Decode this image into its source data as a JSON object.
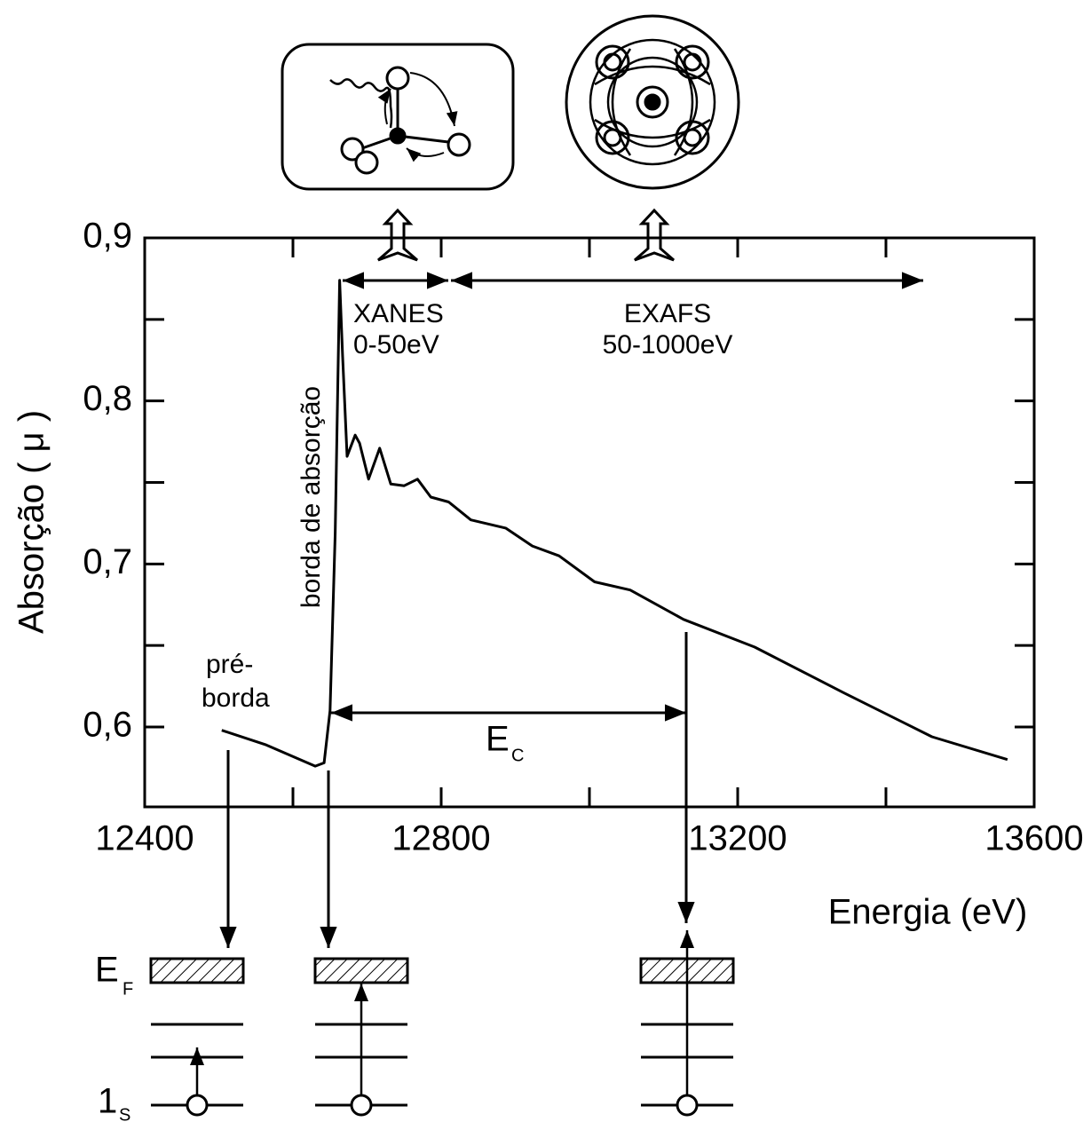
{
  "chart_data": {
    "type": "line",
    "xlabel": "Energia (eV)",
    "ylabel": "Absorção ( μ )",
    "x": [
      12504,
      12564,
      12630,
      12642,
      12650,
      12657,
      12663,
      12667,
      12673,
      12684,
      12690,
      12702,
      12717,
      12732,
      12750,
      12768,
      12786,
      12810,
      12840,
      12887,
      12923,
      12959,
      13007,
      13055,
      13127,
      13223,
      13343,
      13462,
      13564
    ],
    "series": [
      {
        "color": "#000000",
        "values": [
          0.598,
          0.589,
          0.576,
          0.578,
          0.61,
          0.719,
          0.874,
          0.828,
          0.766,
          0.779,
          0.774,
          0.752,
          0.771,
          0.749,
          0.748,
          0.752,
          0.741,
          0.738,
          0.727,
          0.722,
          0.711,
          0.705,
          0.689,
          0.684,
          0.666,
          0.649,
          0.621,
          0.594,
          0.58
        ]
      }
    ],
    "xlim": [
      12400,
      13600
    ],
    "ylim": [
      0.551,
      0.9
    ],
    "xticks": [
      12400,
      12800,
      13200,
      13600
    ],
    "xminorticks": [
      12600,
      13000,
      13400
    ],
    "yticks": [
      {
        "value": 0.6,
        "label": "0,6"
      },
      {
        "value": 0.7,
        "label": "0,7"
      },
      {
        "value": 0.8,
        "label": "0,8"
      },
      {
        "value": 0.9,
        "label": "0,9"
      }
    ],
    "yminorticks": [
      0.65,
      0.75,
      0.85
    ],
    "annotations": [
      "pré-",
      "borda",
      "borda de absorção",
      "XANES",
      "0-50eV",
      "EXAFS",
      "50-1000eV",
      "E",
      "C"
    ],
    "level_labels": [
      "E",
      "F",
      "1",
      "S"
    ]
  }
}
